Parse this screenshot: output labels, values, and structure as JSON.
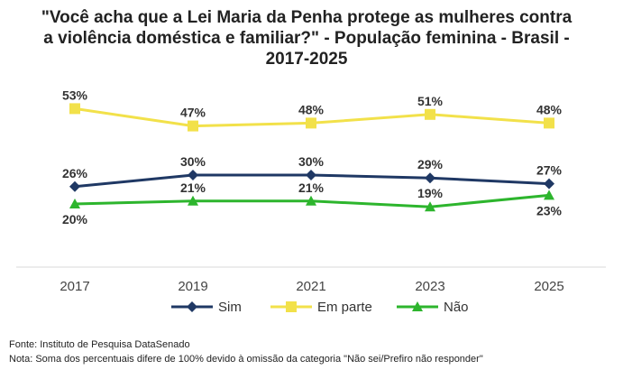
{
  "chart_data": {
    "type": "line",
    "title": "\"Você acha que a Lei Maria da Penha protege as mulheres contra a violência doméstica e familiar?\" - População feminina - Brasil - 2017-2025",
    "categories": [
      "2017",
      "2019",
      "2021",
      "2023",
      "2025"
    ],
    "series": [
      {
        "name": "Sim",
        "values": [
          26,
          30,
          30,
          29,
          27
        ],
        "color": "#1F3864",
        "marker": "diamond"
      },
      {
        "name": "Em parte",
        "values": [
          53,
          47,
          48,
          51,
          48
        ],
        "color": "#F2E14A",
        "marker": "square"
      },
      {
        "name": "Não",
        "values": [
          20,
          21,
          21,
          19,
          23
        ],
        "color": "#2DB52D",
        "marker": "triangle"
      }
    ],
    "value_format": "%",
    "ylim": [
      0,
      60
    ],
    "grid": false,
    "legend": "bottom"
  },
  "footer": {
    "source": "Fonte: Instituto de Pesquisa DataSenado",
    "note": "Nota: Soma dos percentuais difere de 100% devido à omissão da categoria \"Não sei/Prefiro não responder\""
  }
}
